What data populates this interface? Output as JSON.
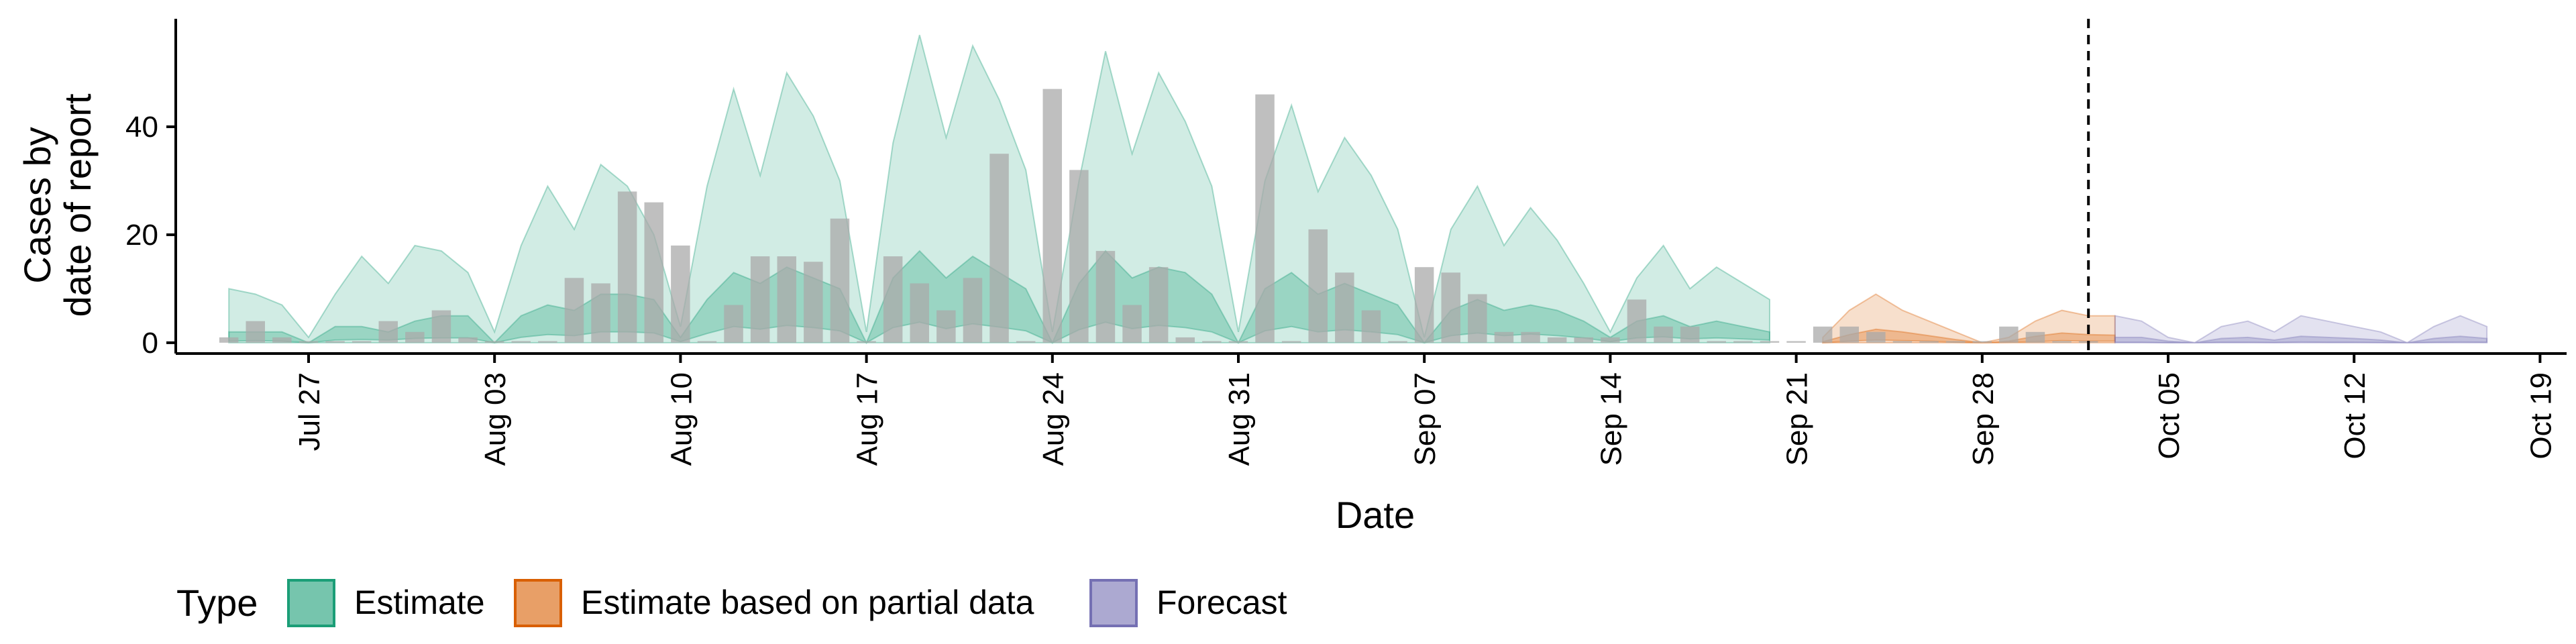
{
  "chart_data": {
    "type": "bar",
    "xlabel": "Date",
    "ylabel_lines": [
      "Cases by",
      "date of report"
    ],
    "x_axis": {
      "range": [
        "2020-07-22",
        "2020-10-20"
      ],
      "tick_labels": [
        "Jul 27",
        "Aug 03",
        "Aug 10",
        "Aug 17",
        "Aug 24",
        "Aug 31",
        "Sep 07",
        "Sep 14",
        "Sep 21",
        "Sep 28",
        "Oct 05",
        "Oct 12",
        "Oct 19"
      ],
      "tick_dates": [
        "2020-07-27",
        "2020-08-03",
        "2020-08-10",
        "2020-08-17",
        "2020-08-24",
        "2020-08-31",
        "2020-09-07",
        "2020-09-14",
        "2020-09-21",
        "2020-09-28",
        "2020-10-05",
        "2020-10-12",
        "2020-10-19"
      ]
    },
    "y_axis": {
      "range": [
        -2,
        60
      ],
      "ticks": [
        0,
        20,
        40
      ],
      "tick_labels": [
        "0",
        "20",
        "40"
      ]
    },
    "vline": "2020-10-02",
    "bar_color": "#a9a9a9",
    "bars": {
      "dates": [
        "2020-07-24",
        "2020-07-25",
        "2020-07-26",
        "2020-07-27",
        "2020-07-28",
        "2020-07-29",
        "2020-07-30",
        "2020-07-31",
        "2020-08-01",
        "2020-08-02",
        "2020-08-03",
        "2020-08-04",
        "2020-08-05",
        "2020-08-06",
        "2020-08-07",
        "2020-08-08",
        "2020-08-09",
        "2020-08-10",
        "2020-08-11",
        "2020-08-12",
        "2020-08-13",
        "2020-08-14",
        "2020-08-15",
        "2020-08-16",
        "2020-08-17",
        "2020-08-18",
        "2020-08-19",
        "2020-08-20",
        "2020-08-21",
        "2020-08-22",
        "2020-08-23",
        "2020-08-24",
        "2020-08-25",
        "2020-08-26",
        "2020-08-27",
        "2020-08-28",
        "2020-08-29",
        "2020-08-30",
        "2020-08-31",
        "2020-09-01",
        "2020-09-02",
        "2020-09-03",
        "2020-09-04",
        "2020-09-05",
        "2020-09-06",
        "2020-09-07",
        "2020-09-08",
        "2020-09-09",
        "2020-09-10",
        "2020-09-11",
        "2020-09-12",
        "2020-09-13",
        "2020-09-14",
        "2020-09-15",
        "2020-09-16",
        "2020-09-17",
        "2020-09-18",
        "2020-09-19",
        "2020-09-20",
        "2020-09-21",
        "2020-09-22",
        "2020-09-23",
        "2020-09-24",
        "2020-09-25",
        "2020-09-26",
        "2020-09-27",
        "2020-09-28",
        "2020-09-29",
        "2020-09-30",
        "2020-10-01",
        "2020-10-02"
      ],
      "values": [
        1,
        4,
        1,
        0,
        0,
        0,
        4,
        2,
        6,
        1,
        0,
        0,
        0,
        12,
        11,
        28,
        26,
        18,
        0,
        7,
        16,
        16,
        15,
        23,
        0,
        16,
        11,
        6,
        12,
        35,
        0,
        47,
        32,
        17,
        7,
        14,
        1,
        0,
        0,
        46,
        0,
        21,
        13,
        6,
        0,
        14,
        13,
        9,
        2,
        2,
        1,
        1,
        1,
        8,
        3,
        3,
        0,
        0,
        0,
        0,
        3,
        3,
        2,
        0,
        0,
        0,
        0,
        3,
        2,
        0,
        0
      ]
    },
    "series": [
      {
        "name": "Estimate",
        "fill": "#1b9e77",
        "stroke": "#1b9e77",
        "start": "2020-07-24",
        "outer_upper": [
          10,
          9,
          7,
          1,
          9,
          16,
          11,
          18,
          17,
          13,
          2,
          18,
          29,
          21,
          33,
          29,
          20,
          3,
          29,
          47,
          31,
          50,
          42,
          30,
          2,
          37,
          57,
          38,
          55,
          45,
          32,
          2,
          30,
          54,
          35,
          50,
          41,
          29,
          2,
          30,
          44,
          28,
          38,
          31,
          21,
          1,
          21,
          29,
          18,
          25,
          19,
          11,
          2,
          12,
          18,
          10,
          14,
          11,
          8
        ],
        "inner_upper": [
          2,
          2,
          2,
          0,
          3,
          3,
          2,
          4,
          5,
          5,
          0,
          5,
          7,
          6,
          9,
          9,
          8,
          1,
          8,
          13,
          11,
          14,
          12,
          10,
          0,
          12,
          17,
          12,
          16,
          13,
          10,
          0,
          11,
          17,
          12,
          14,
          13,
          9,
          0,
          10,
          13,
          9,
          11,
          9,
          7,
          0,
          6,
          8,
          6,
          7,
          6,
          4,
          1,
          4,
          5,
          3,
          4,
          3,
          2
        ],
        "inner_lower": [
          0.3,
          0.4,
          0.3,
          0,
          0.5,
          0.6,
          0.5,
          0.8,
          0.9,
          0.9,
          0,
          1,
          1.5,
          1.3,
          2,
          2,
          1.8,
          0.2,
          1.7,
          3,
          2.5,
          3.2,
          2.8,
          2.2,
          0,
          2.8,
          3.8,
          2.6,
          3.5,
          2.9,
          2.2,
          0,
          2.4,
          3.8,
          2.6,
          3.2,
          2.8,
          2,
          0,
          2.2,
          3,
          2,
          2.4,
          2,
          1.5,
          0,
          1.3,
          1.8,
          1.3,
          1.6,
          1.3,
          0.9,
          0.2,
          0.9,
          1.1,
          0.7,
          0.9,
          0.7,
          0.5
        ],
        "outer_lower": [
          0,
          0,
          0,
          0,
          0,
          0,
          0,
          0,
          0,
          0,
          0,
          0,
          0,
          0,
          0,
          0,
          0,
          0,
          0,
          0,
          0,
          0,
          0,
          0,
          0,
          0,
          0,
          0,
          0,
          0,
          0,
          0,
          0,
          0,
          0,
          0,
          0,
          0,
          0,
          0,
          0,
          0,
          0,
          0,
          0,
          0,
          0,
          0,
          0,
          0,
          0,
          0,
          0,
          0,
          0,
          0,
          0,
          0,
          0
        ]
      },
      {
        "name": "Estimate based on partial data",
        "fill": "#d95f02",
        "stroke": "#d95f02",
        "start": "2020-09-22",
        "outer_upper": [
          1,
          6,
          9,
          6,
          4,
          2,
          0,
          1,
          4,
          6,
          5,
          5
        ],
        "inner_upper": [
          0.2,
          1.5,
          2.5,
          2,
          1.3,
          0.6,
          0,
          0.3,
          1.2,
          1.8,
          1.5,
          1.4
        ],
        "inner_lower": [
          0,
          0.3,
          0.5,
          0.4,
          0.3,
          0.1,
          0,
          0.1,
          0.2,
          0.4,
          0.3,
          0.3
        ],
        "outer_lower": [
          0,
          0,
          0,
          0,
          0,
          0,
          0,
          0,
          0,
          0,
          0,
          0
        ]
      },
      {
        "name": "Forecast",
        "fill": "#7570b3",
        "stroke": "#7570b3",
        "start": "2020-10-03",
        "outer_upper": [
          5,
          4,
          1,
          0,
          3,
          4,
          2,
          5,
          4,
          3,
          2,
          0,
          3,
          5,
          3
        ],
        "inner_upper": [
          1,
          1,
          0.3,
          0,
          0.8,
          1,
          0.5,
          1.2,
          1,
          0.8,
          0.5,
          0,
          0.8,
          1.2,
          0.8
        ],
        "inner_lower": [
          0.1,
          0.1,
          0,
          0,
          0.1,
          0.1,
          0.05,
          0.15,
          0.1,
          0.1,
          0.05,
          0,
          0.1,
          0.15,
          0.1
        ],
        "outer_lower": [
          0,
          0,
          0,
          0,
          0,
          0,
          0,
          0,
          0,
          0,
          0,
          0,
          0,
          0,
          0
        ]
      }
    ],
    "legend": {
      "position": "bottom",
      "title": "Type",
      "items": [
        "Estimate",
        "Estimate based on partial data",
        "Forecast"
      ]
    }
  }
}
